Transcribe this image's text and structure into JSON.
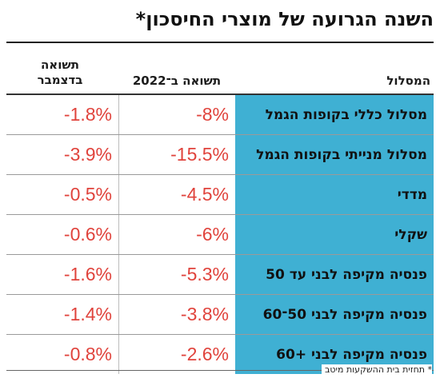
{
  "header": {
    "title": "השנה הגרועה של מוצרי החיסכון*"
  },
  "chart_data": {
    "type": "table",
    "columns": [
      {
        "key": "path",
        "label": "המסלול"
      },
      {
        "key": "ytd_2022",
        "label": "תשואה ב־2022"
      },
      {
        "key": "december",
        "label": "תשואה בדצמבר"
      }
    ],
    "rows": [
      {
        "path": "מסלול כללי בקופות הגמל",
        "ytd_2022": "-8%",
        "december": "-1.8%"
      },
      {
        "path": "מסלול מנייתי בקופות הגמל",
        "ytd_2022": "-15.5%",
        "december": "-3.9%"
      },
      {
        "path": "מדדי",
        "ytd_2022": "-4.5%",
        "december": "-0.5%"
      },
      {
        "path": "שקלי",
        "ytd_2022": "-6%",
        "december": "-0.6%"
      },
      {
        "path": "פנסיה מקיפה לבני עד 50",
        "ytd_2022": "-5.3%",
        "december": "-1.6%"
      },
      {
        "path": "פנסיה מקיפה לבני 50־60",
        "ytd_2022": "-3.8%",
        "december": "-1.4%"
      },
      {
        "path": "פנסיה מקיפה לבני +60",
        "ytd_2022": "-2.6%",
        "december": "-0.8%"
      }
    ],
    "ytd_values": [
      -8,
      -15.5,
      -4.5,
      -6,
      -5.3,
      -3.8,
      -2.6
    ],
    "december_values": [
      -1.8,
      -3.9,
      -0.5,
      -0.6,
      -1.6,
      -1.4,
      -0.8
    ],
    "unit": "%"
  },
  "footnote": "* תחזית בית ההשקעות מיטב",
  "colors": {
    "path_column_bg": "#3fb0d3",
    "negative_value_text": "#e0433c",
    "title_text": "#111111"
  }
}
